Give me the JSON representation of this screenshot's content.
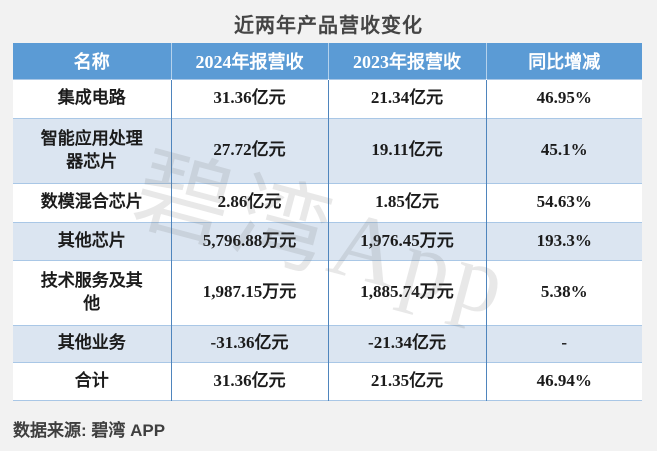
{
  "page": {
    "title": "近两年产品营收变化",
    "source": "数据来源: 碧湾 APP",
    "watermark": "碧湾App"
  },
  "colors": {
    "page_background": "#f2f2f2",
    "header_background": "#5b9bd5",
    "header_text": "#ffffff",
    "stripe_row_background": "#dbe5f1",
    "white_row_background": "#ffffff",
    "vertical_border": "#4f85bd",
    "horizontal_border": "#a9c7e6",
    "cell_text": "#1b1b1b",
    "title_text": "#454545"
  },
  "table": {
    "headers": {
      "name": "名称",
      "rev2024": "2024年报营收",
      "rev2023": "2023年报营收",
      "yoy": "同比增减"
    },
    "rows": [
      {
        "name": "集成电路",
        "rev2024": "31.36亿元",
        "rev2023": "21.34亿元",
        "yoy": "46.95%"
      },
      {
        "name": "智能应用处理器芯片",
        "rev2024": "27.72亿元",
        "rev2023": "19.11亿元",
        "yoy": "45.1%"
      },
      {
        "name": "数模混合芯片",
        "rev2024": "2.86亿元",
        "rev2023": "1.85亿元",
        "yoy": "54.63%"
      },
      {
        "name": "其他芯片",
        "rev2024": "5,796.88万元",
        "rev2023": "1,976.45万元",
        "yoy": "193.3%"
      },
      {
        "name": "技术服务及其他",
        "rev2024": "1,987.15万元",
        "rev2023": "1,885.74万元",
        "yoy": "5.38%"
      },
      {
        "name": "其他业务",
        "rev2024": "-31.36亿元",
        "rev2023": "-21.34亿元",
        "yoy": "-"
      },
      {
        "name": "合计",
        "rev2024": "31.36亿元",
        "rev2023": "21.35亿元",
        "yoy": "46.94%"
      }
    ]
  },
  "chart_data": {
    "type": "table",
    "title": "近两年产品营收变化",
    "columns": [
      "名称",
      "2024年报营收",
      "2023年报营收",
      "同比增减"
    ],
    "rows": [
      [
        "集成电路",
        "31.36亿元",
        "21.34亿元",
        "46.95%"
      ],
      [
        "智能应用处理器芯片",
        "27.72亿元",
        "19.11亿元",
        "45.1%"
      ],
      [
        "数模混合芯片",
        "2.86亿元",
        "1.85亿元",
        "54.63%"
      ],
      [
        "其他芯片",
        "5,796.88万元",
        "1,976.45万元",
        "193.3%"
      ],
      [
        "技术服务及其他",
        "1,987.15万元",
        "1,885.74万元",
        "5.38%"
      ],
      [
        "其他业务",
        "-31.36亿元",
        "-21.34亿元",
        "-"
      ],
      [
        "合计",
        "31.36亿元",
        "21.35亿元",
        "46.94%"
      ]
    ],
    "source": "数据来源: 碧湾 APP",
    "watermark": "碧湾App"
  }
}
